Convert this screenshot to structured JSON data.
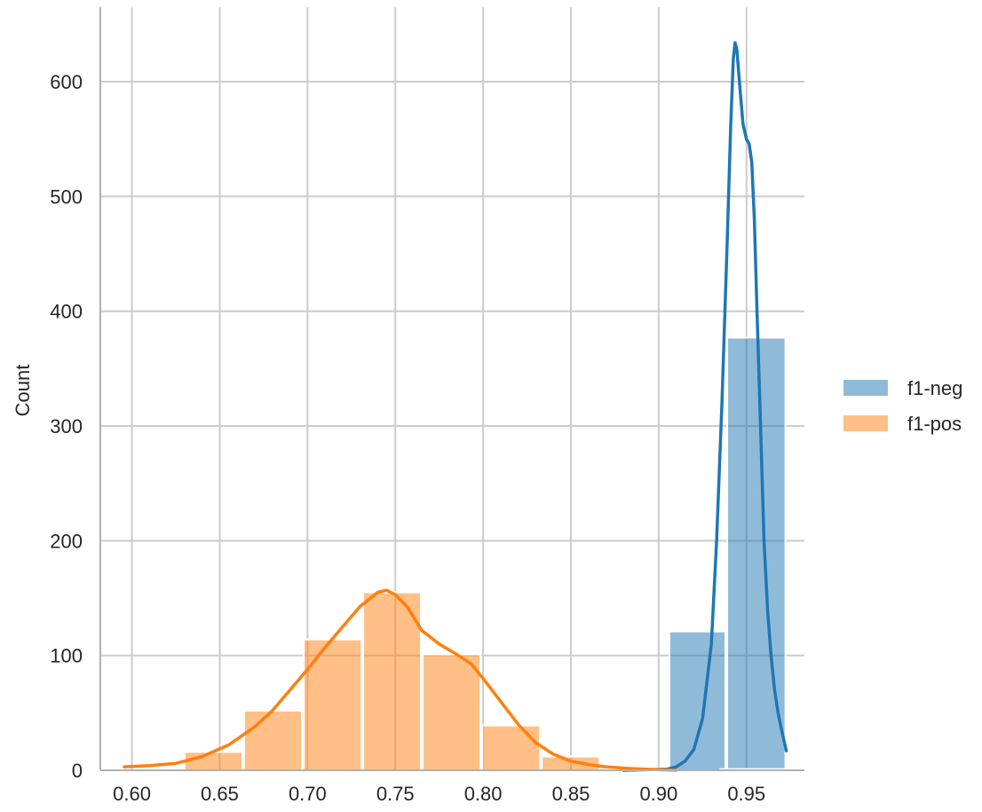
{
  "chart_data": {
    "type": "bar",
    "title": "",
    "xlabel": "",
    "ylabel": "Count",
    "xlim": [
      0.582,
      0.983
    ],
    "ylim": [
      0,
      665
    ],
    "xticks": [
      0.6,
      0.65,
      0.7,
      0.75,
      0.8,
      0.85,
      0.9,
      0.95
    ],
    "xtick_labels": [
      "0.60",
      "0.65",
      "0.70",
      "0.75",
      "0.80",
      "0.85",
      "0.90",
      "0.95"
    ],
    "yticks": [
      0,
      100,
      200,
      300,
      400,
      500,
      600
    ],
    "ytick_labels": [
      "0",
      "100",
      "200",
      "300",
      "400",
      "500",
      "600"
    ],
    "grid": true,
    "legend_placement": "right",
    "series": [
      {
        "name": "f1-neg",
        "color": "#1f77b4",
        "bins": [
          {
            "x0": 0.9056,
            "x1": 0.9385,
            "count": 121
          },
          {
            "x0": 0.9385,
            "x1": 0.9727,
            "count": 377
          }
        ],
        "kde": [
          [
            0.88,
            0
          ],
          [
            0.905,
            1
          ],
          [
            0.91,
            3
          ],
          [
            0.915,
            8
          ],
          [
            0.92,
            18
          ],
          [
            0.925,
            45
          ],
          [
            0.93,
            110
          ],
          [
            0.933,
            200
          ],
          [
            0.936,
            320
          ],
          [
            0.939,
            460
          ],
          [
            0.941,
            560
          ],
          [
            0.9425,
            620
          ],
          [
            0.9435,
            634
          ],
          [
            0.9445,
            628
          ],
          [
            0.946,
            600
          ],
          [
            0.948,
            563
          ],
          [
            0.95,
            550
          ],
          [
            0.9515,
            546
          ],
          [
            0.953,
            530
          ],
          [
            0.9545,
            480
          ],
          [
            0.956,
            400
          ],
          [
            0.958,
            300
          ],
          [
            0.96,
            200
          ],
          [
            0.962,
            140
          ],
          [
            0.964,
            100
          ],
          [
            0.966,
            70
          ],
          [
            0.968,
            50
          ],
          [
            0.97,
            35
          ],
          [
            0.9727,
            17
          ]
        ]
      },
      {
        "name": "f1-pos",
        "color": "#ff7f0e",
        "bins": [
          {
            "x0": 0.5956,
            "x1": 0.6295,
            "count": 0
          },
          {
            "x0": 0.6295,
            "x1": 0.6634,
            "count": 16
          },
          {
            "x0": 0.6634,
            "x1": 0.6973,
            "count": 52
          },
          {
            "x0": 0.6973,
            "x1": 0.7312,
            "count": 114
          },
          {
            "x0": 0.7312,
            "x1": 0.7651,
            "count": 155
          },
          {
            "x0": 0.7651,
            "x1": 0.799,
            "count": 101
          },
          {
            "x0": 0.799,
            "x1": 0.8329,
            "count": 39
          },
          {
            "x0": 0.8329,
            "x1": 0.8668,
            "count": 12
          },
          {
            "x0": 0.8668,
            "x1": 0.9007,
            "count": 0
          },
          {
            "x0": 0.9007,
            "x1": 0.9346,
            "count": 0
          },
          {
            "x0": 0.9346,
            "x1": 0.9727,
            "count": 1
          }
        ],
        "kde": [
          [
            0.5956,
            3
          ],
          [
            0.61,
            4
          ],
          [
            0.625,
            6
          ],
          [
            0.64,
            12
          ],
          [
            0.655,
            22
          ],
          [
            0.67,
            38
          ],
          [
            0.68,
            52
          ],
          [
            0.69,
            70
          ],
          [
            0.7,
            88
          ],
          [
            0.71,
            107
          ],
          [
            0.72,
            125
          ],
          [
            0.73,
            143
          ],
          [
            0.74,
            155
          ],
          [
            0.745,
            157
          ],
          [
            0.75,
            153
          ],
          [
            0.757,
            142
          ],
          [
            0.765,
            122
          ],
          [
            0.775,
            110
          ],
          [
            0.785,
            101
          ],
          [
            0.793,
            93
          ],
          [
            0.8,
            80
          ],
          [
            0.81,
            60
          ],
          [
            0.82,
            40
          ],
          [
            0.83,
            24
          ],
          [
            0.84,
            14
          ],
          [
            0.85,
            8
          ],
          [
            0.86,
            5
          ],
          [
            0.87,
            3
          ],
          [
            0.885,
            1.5
          ],
          [
            0.9,
            0.5
          ],
          [
            0.91,
            0
          ]
        ]
      }
    ]
  }
}
